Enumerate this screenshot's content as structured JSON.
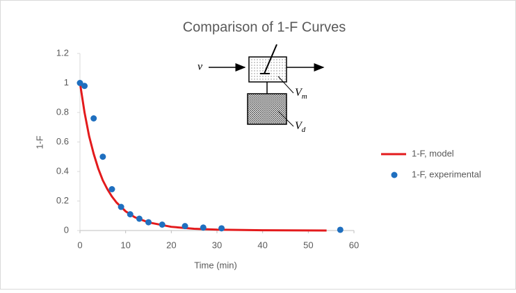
{
  "chart_data": {
    "type": "line",
    "title": "Comparison of 1-F Curves",
    "x_label": "Time (min)",
    "y_label": "1-F",
    "xlim": [
      0,
      60
    ],
    "xticks": [
      0,
      10,
      20,
      30,
      40,
      50,
      60
    ],
    "ylim": [
      0,
      1.2
    ],
    "yticks": [
      0,
      0.2,
      0.4,
      0.6,
      0.8,
      1,
      1.2
    ],
    "grid": false,
    "legend": "right",
    "series": [
      {
        "name": "1-F, model",
        "type": "line",
        "color": "#e31a1c",
        "x": [
          0,
          1,
          2,
          3,
          4,
          5,
          6,
          7,
          8,
          10,
          12,
          15,
          20,
          25,
          30,
          40,
          54
        ],
        "values": [
          1,
          0.8,
          0.64,
          0.52,
          0.42,
          0.34,
          0.28,
          0.23,
          0.19,
          0.13,
          0.09,
          0.055,
          0.025,
          0.012,
          0.006,
          0.002,
          0
        ]
      },
      {
        "name": "1-F, experimental",
        "type": "scatter",
        "color": "#1f6fbf",
        "x": [
          0,
          1,
          3,
          5,
          7,
          9,
          11,
          13,
          15,
          18,
          23,
          27,
          31,
          57
        ],
        "values": [
          1,
          0.98,
          0.76,
          0.5,
          0.28,
          0.16,
          0.11,
          0.08,
          0.056,
          0.04,
          0.03,
          0.02,
          0.015,
          0.005
        ]
      }
    ],
    "inset": {
      "inflow": "v",
      "volumes": [
        {
          "symbol": "V",
          "subscript": "m"
        },
        {
          "symbol": "V",
          "subscript": "d"
        }
      ]
    }
  }
}
